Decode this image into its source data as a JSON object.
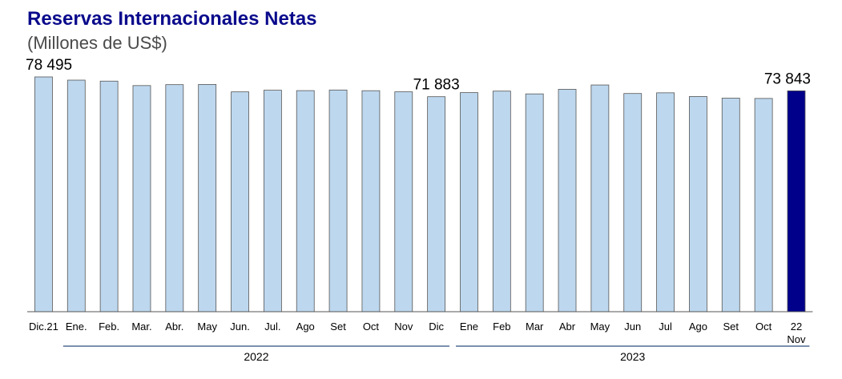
{
  "title": "Reservas Internacionales Netas",
  "subtitle": "(Millones de US$)",
  "chart_data": {
    "type": "bar",
    "categories": [
      "Dic.21",
      "Ene.",
      "Feb.",
      "Mar.",
      "Abr.",
      "May",
      "Jun.",
      "Jul.",
      "Ago",
      "Set",
      "Oct",
      "Nov",
      "Dic",
      "Ene",
      "Feb",
      "Mar",
      "Abr",
      "May",
      "Jun",
      "Jul",
      "Ago",
      "Set",
      "Oct",
      "22 Nov"
    ],
    "values": [
      78495,
      77420,
      77090,
      75600,
      75910,
      75980,
      73500,
      74050,
      73910,
      74120,
      73890,
      73520,
      71883,
      73250,
      73750,
      72820,
      74350,
      75800,
      72950,
      73180,
      71950,
      71400,
      71300,
      73843
    ],
    "data_labels": [
      {
        "index": 0,
        "text": "78 495"
      },
      {
        "index": 12,
        "text": "71 883"
      },
      {
        "index": 23,
        "text": "73 843"
      }
    ],
    "groups": [
      {
        "label": "2022",
        "from": 1,
        "to": 12
      },
      {
        "label": "2023",
        "from": 13,
        "to": 23
      }
    ],
    "ylim": [
      0,
      80000
    ],
    "colors": {
      "bar": "#bdd7ee",
      "highlight": "#00008b",
      "axis": "#555555",
      "group_line": "#2e4d7e"
    },
    "highlight_index": 23
  }
}
